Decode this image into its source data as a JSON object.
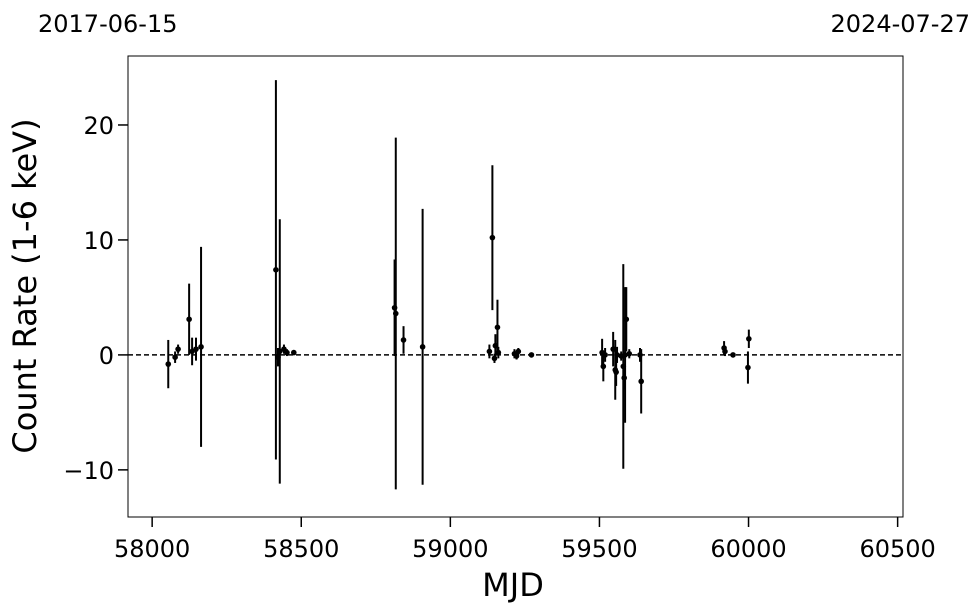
{
  "chart_data": {
    "type": "scatter",
    "top_labels": [
      "2017-06-15",
      "2024-07-27"
    ],
    "xlabel": "MJD",
    "ylabel": "Count Rate (1-6 keV)",
    "color": "#000000",
    "hline": 0,
    "xlim": [
      57919,
      60518
    ],
    "ylim": [
      -14.1,
      26
    ],
    "xticks": [
      58000,
      58500,
      59000,
      59500,
      60000,
      60500
    ],
    "yticks": [
      {
        "value": -10,
        "label": "−10"
      },
      0,
      10,
      20
    ],
    "x": [
      58054,
      58077,
      58087,
      58124,
      58134,
      58147,
      58164,
      58415,
      58422,
      58428,
      58442,
      58452,
      58475,
      58813,
      58817,
      58843,
      58907,
      59131,
      59141,
      59148,
      59151,
      59158,
      59161,
      59215,
      59222,
      59228,
      59272,
      59509,
      59513,
      59519,
      59546,
      59553,
      59556,
      59559,
      59573,
      59580,
      59583,
      59586,
      59590,
      59600,
      59636,
      59640,
      59918,
      59921,
      59948,
      59998,
      60001
    ],
    "values": [
      -0.8,
      -0.2,
      0.5,
      3.1,
      0.3,
      0.5,
      0.7,
      7.4,
      -0.2,
      0.3,
      0.5,
      0.2,
      0.2,
      4.1,
      3.6,
      1.3,
      0.7,
      0.3,
      10.2,
      -0.3,
      0.8,
      2.4,
      0.2,
      0.1,
      -0.1,
      0.3,
      0,
      0.2,
      -1,
      0,
      0.5,
      -1.3,
      -1.5,
      0,
      -0.1,
      -1,
      -2,
      0,
      3.1,
      0.1,
      0,
      -2.3,
      0.6,
      0.3,
      0,
      -1.1,
      1.4
    ],
    "errors": [
      2.1,
      0.5,
      0.4,
      3.1,
      1.2,
      1.0,
      8.7,
      16.5,
      0.8,
      11.5,
      0.4,
      0.3,
      0.2,
      4.2,
      15.3,
      1.2,
      12,
      0.6,
      6.3,
      0.4,
      1,
      2.4,
      0.5,
      0.4,
      0.3,
      0.3,
      0.1,
      1.2,
      1.3,
      0.6,
      1.5,
      2.6,
      1.2,
      0.7,
      0.4,
      8.9,
      1,
      5.9,
      2.8,
      0.4,
      0.6,
      2.8,
      0.6,
      0.4,
      0.1,
      1.4,
      0.8
    ]
  }
}
